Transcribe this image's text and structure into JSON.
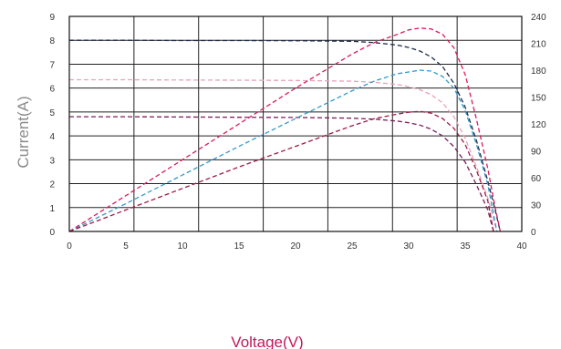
{
  "chart_data": {
    "type": "line",
    "title": "",
    "xlabel": "Voltage(V)",
    "ylabel": "Current(A)",
    "y2label": "",
    "xlim": [
      0,
      40
    ],
    "ylim": [
      0,
      9
    ],
    "y2lim": [
      0,
      240
    ],
    "x_ticks": [
      0,
      5,
      10,
      15,
      20,
      25,
      30,
      35,
      40
    ],
    "y_ticks": [
      0,
      1,
      2,
      3,
      4,
      5,
      6,
      7,
      8,
      9
    ],
    "y2_ticks": [
      0,
      30,
      60,
      90,
      120,
      150,
      180,
      210,
      240
    ],
    "grid": true,
    "legend": "none",
    "series": [
      {
        "kind": "current",
        "axis": "left",
        "color": "#1f2d4d",
        "points": [
          [
            0,
            8.0
          ],
          [
            5,
            8.0
          ],
          [
            10,
            7.99
          ],
          [
            15,
            7.99
          ],
          [
            20,
            7.98
          ],
          [
            25,
            7.96
          ],
          [
            27,
            7.9
          ],
          [
            29,
            7.8
          ],
          [
            30,
            7.7
          ],
          [
            31,
            7.55
          ],
          [
            32,
            7.3
          ],
          [
            33,
            6.9
          ],
          [
            34,
            6.2
          ],
          [
            35,
            5.2
          ],
          [
            36,
            3.8
          ],
          [
            37,
            2.1
          ],
          [
            37.6,
            1.0
          ],
          [
            38.1,
            0
          ]
        ]
      },
      {
        "kind": "current",
        "axis": "left",
        "color": "#e8a2b6",
        "points": [
          [
            0,
            6.35
          ],
          [
            5,
            6.35
          ],
          [
            10,
            6.34
          ],
          [
            15,
            6.33
          ],
          [
            20,
            6.32
          ],
          [
            25,
            6.29
          ],
          [
            27,
            6.24
          ],
          [
            29,
            6.15
          ],
          [
            30,
            6.06
          ],
          [
            31,
            5.93
          ],
          [
            32,
            5.72
          ],
          [
            33,
            5.38
          ],
          [
            34,
            4.8
          ],
          [
            35,
            3.9
          ],
          [
            36,
            2.7
          ],
          [
            37,
            1.4
          ],
          [
            37.8,
            0
          ]
        ]
      },
      {
        "kind": "current",
        "axis": "left",
        "color": "#7b1e5a",
        "points": [
          [
            0,
            4.8
          ],
          [
            5,
            4.8
          ],
          [
            10,
            4.79
          ],
          [
            15,
            4.78
          ],
          [
            20,
            4.77
          ],
          [
            25,
            4.74
          ],
          [
            27,
            4.7
          ],
          [
            29,
            4.62
          ],
          [
            30,
            4.55
          ],
          [
            31,
            4.45
          ],
          [
            32,
            4.28
          ],
          [
            33,
            4.0
          ],
          [
            34,
            3.55
          ],
          [
            35,
            2.9
          ],
          [
            36,
            1.95
          ],
          [
            37,
            0.9
          ],
          [
            37.5,
            0
          ]
        ]
      },
      {
        "kind": "power",
        "axis": "right",
        "color": "#d81b60",
        "points": [
          [
            0,
            0
          ],
          [
            5,
            40
          ],
          [
            10,
            80
          ],
          [
            15,
            120
          ],
          [
            20,
            160
          ],
          [
            25,
            198
          ],
          [
            27,
            211
          ],
          [
            29,
            220
          ],
          [
            30,
            225
          ],
          [
            31,
            227
          ],
          [
            32,
            226
          ],
          [
            33,
            220
          ],
          [
            34,
            205
          ],
          [
            35,
            175
          ],
          [
            36,
            125
          ],
          [
            37,
            70
          ],
          [
            37.6,
            30
          ],
          [
            38.1,
            0
          ]
        ]
      },
      {
        "kind": "power",
        "axis": "right",
        "color": "#3399cc",
        "points": [
          [
            0,
            0
          ],
          [
            5,
            31
          ],
          [
            10,
            63
          ],
          [
            15,
            95
          ],
          [
            20,
            126
          ],
          [
            25,
            157
          ],
          [
            27,
            168
          ],
          [
            29,
            176
          ],
          [
            30,
            178
          ],
          [
            31,
            180
          ],
          [
            32,
            179
          ],
          [
            33,
            173
          ],
          [
            34,
            160
          ],
          [
            35,
            135
          ],
          [
            36,
            97
          ],
          [
            37,
            52
          ],
          [
            37.8,
            0
          ]
        ]
      },
      {
        "kind": "power",
        "axis": "right",
        "color": "#9e1b46",
        "points": [
          [
            0,
            0
          ],
          [
            5,
            24
          ],
          [
            10,
            48
          ],
          [
            15,
            72
          ],
          [
            20,
            95
          ],
          [
            25,
            118
          ],
          [
            27,
            126
          ],
          [
            29,
            131
          ],
          [
            30,
            133
          ],
          [
            31,
            134
          ],
          [
            32,
            132
          ],
          [
            33,
            126
          ],
          [
            34,
            115
          ],
          [
            35,
            97
          ],
          [
            36,
            68
          ],
          [
            37,
            34
          ],
          [
            37.5,
            0
          ]
        ]
      }
    ]
  }
}
